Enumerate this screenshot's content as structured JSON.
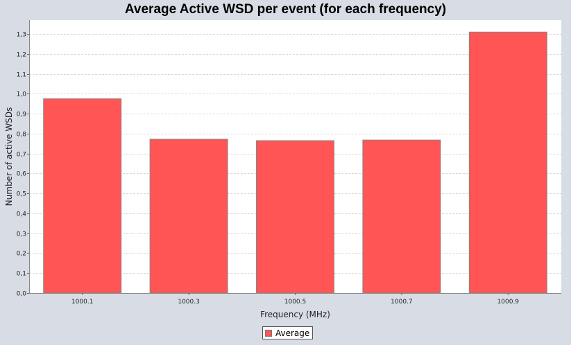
{
  "chart_data": {
    "type": "bar",
    "title": "Average Active WSD per event (for each frequency)",
    "xlabel": "Frequency (MHz)",
    "ylabel": "Number of active WSDs",
    "categories": [
      "1000.1",
      "1000.3",
      "1000.5",
      "1000.7",
      "1000.9"
    ],
    "series": [
      {
        "name": "Average",
        "values": [
          0.975,
          0.772,
          0.765,
          0.768,
          1.31
        ]
      }
    ],
    "ylim": [
      0,
      1.37
    ],
    "yticks": [
      "0,0",
      "0,1",
      "0,2",
      "0,3",
      "0,4",
      "0,5",
      "0,6",
      "0,7",
      "0,8",
      "0,9",
      "1,0",
      "1,1",
      "1,2",
      "1,3"
    ],
    "grid": true,
    "legend_position": "bottom-center",
    "colors": {
      "bar_fill": "#ff5555",
      "bar_stroke": "#888888",
      "plot_background": "#ffffff",
      "grid": "#d8d8d8",
      "page_background": "#d8dce4"
    }
  }
}
